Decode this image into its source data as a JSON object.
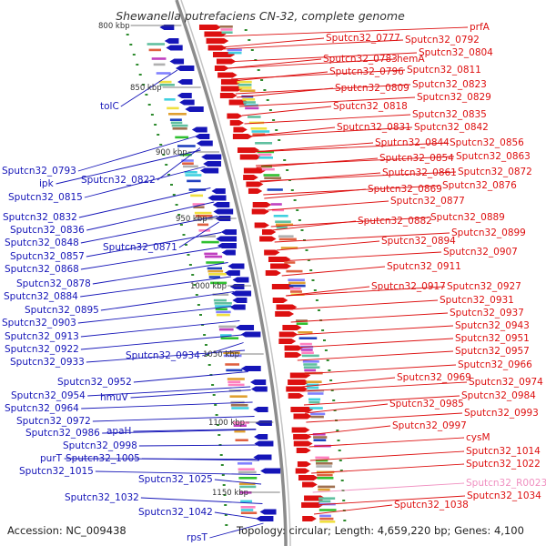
{
  "title": "Shewanella putrefaciens CN-32, complete genome",
  "footer": {
    "accession": "Accession: NC_009438",
    "info": "Topology: circular; Length: 4,659,220 bp; Genes: 4,100"
  },
  "colors": {
    "forward": "#dd1010",
    "reverse": "#1515b8",
    "rna": "#f08fc0",
    "backbone": "#8c8c8c",
    "gc_dots": "#2e8b2e"
  },
  "ticks": [
    "800 kbp",
    "850 kbp",
    "900 kbp",
    "950 kbp",
    "1000 kbp",
    "1050 kbp",
    "1100 kbp",
    "1150 kbp"
  ],
  "left_labels": [
    "tolC",
    "Sputcn32_0793",
    "ipk",
    "Sputcn32_0822",
    "Sputcn32_0815",
    "Sputcn32_0832",
    "Sputcn32_0836",
    "Sputcn32_0848",
    "Sputcn32_0871",
    "Sputcn32_0857",
    "Sputcn32_0868",
    "Sputcn32_0878",
    "Sputcn32_0884",
    "Sputcn32_0895",
    "Sputcn32_0903",
    "Sputcn32_0913",
    "Sputcn32_0922",
    "Sputcn32_0934",
    "Sputcn32_0933",
    "Sputcn32_0952",
    "Sputcn32_0954",
    "hmuV",
    "Sputcn32_0964",
    "Sputcn32_0972",
    "Sputcn32_0986",
    "apaH",
    "Sputcn32_0998",
    "purT",
    "Sputcn32_1005",
    "Sputcn32_1015",
    "Sputcn32_1025",
    "Sputcn32_1032",
    "Sputcn32_1042",
    "rpsT"
  ],
  "right_labels": [
    "prfA",
    "Sputcn32_0777",
    "Sputcn32_0792",
    "Sputcn32_0804",
    "Sputcn32_0783",
    "hemA",
    "Sputcn32_0796",
    "Sputcn32_0811",
    "Sputcn32_0809",
    "Sputcn32_0823",
    "Sputcn32_0829",
    "Sputcn32_0818",
    "Sputcn32_0835",
    "Sputcn32_0831",
    "Sputcn32_0842",
    "Sputcn32_0844",
    "Sputcn32_0856",
    "Sputcn32_0854",
    "Sputcn32_0863",
    "Sputcn32_0861",
    "Sputcn32_0872",
    "Sputcn32_0869",
    "Sputcn32_0876",
    "Sputcn32_0877",
    "Sputcn32_0882",
    "Sputcn32_0889",
    "Sputcn32_0899",
    "Sputcn32_0894",
    "Sputcn32_0907",
    "Sputcn32_0911",
    "Sputcn32_0917",
    "Sputcn32_0927",
    "Sputcn32_0931",
    "Sputcn32_0937",
    "Sputcn32_0943",
    "Sputcn32_0951",
    "Sputcn32_0957",
    "Sputcn32_0966",
    "Sputcn32_0969",
    "Sputcn32_0974",
    "Sputcn32_0984",
    "Sputcn32_0985",
    "Sputcn32_0993",
    "Sputcn32_0997",
    "cysM",
    "Sputcn32_1014",
    "Sputcn32_1022",
    "Sputcn32_R0023",
    "Sputcn32_1034",
    "Sputcn32_1038"
  ]
}
